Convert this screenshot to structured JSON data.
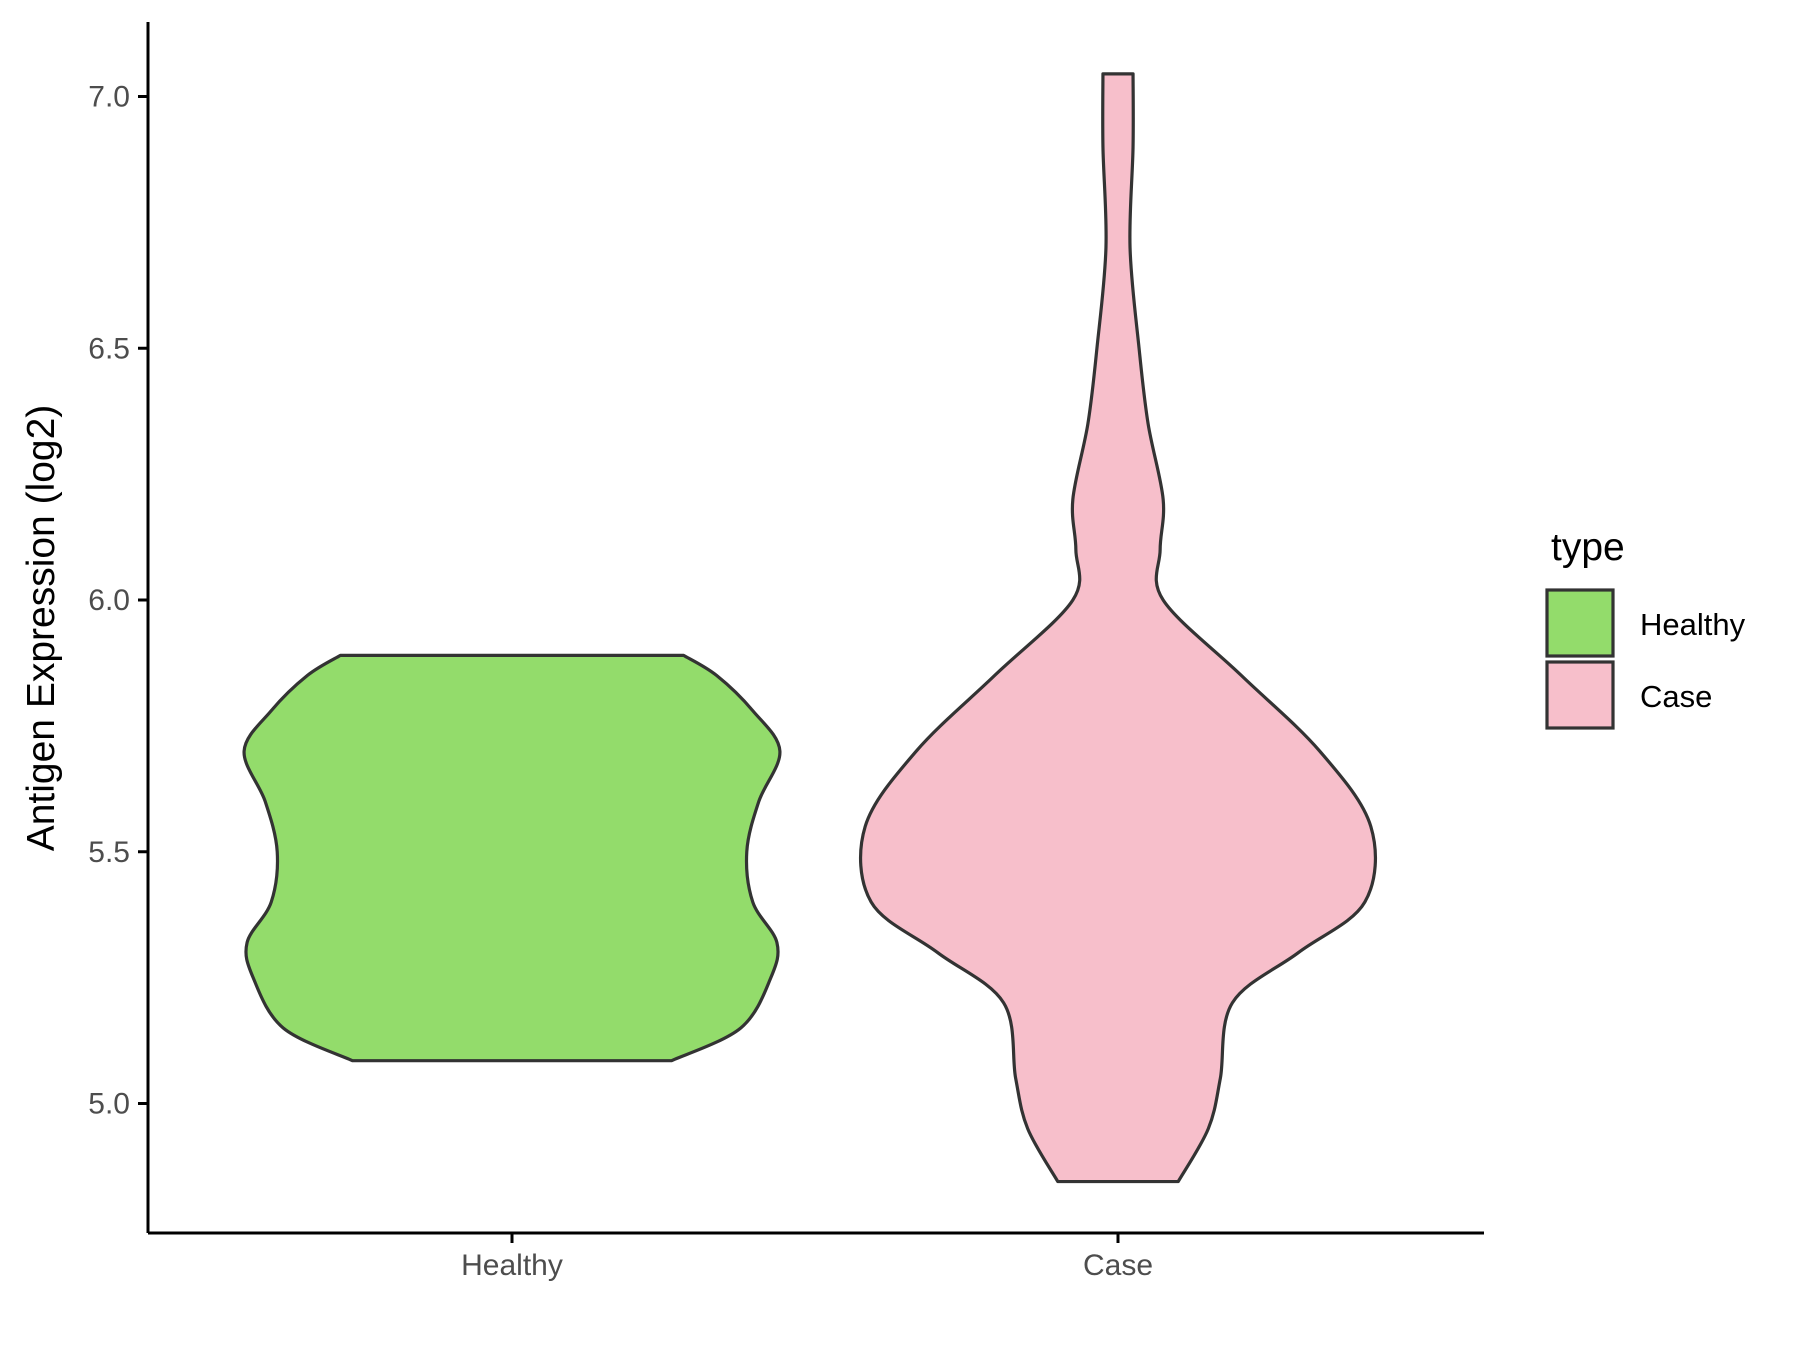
{
  "chart_data": {
    "type": "violin",
    "xlabel": "",
    "ylabel": "Antigen Expression (log2)",
    "ylim": [
      4.74,
      7.15
    ],
    "yticks": [
      "5.0",
      "5.5",
      "6.0",
      "6.5",
      "7.0"
    ],
    "ytick_values": [
      5.0,
      5.5,
      6.0,
      6.5,
      7.0
    ],
    "categories": [
      "Healthy",
      "Case"
    ],
    "grid": false,
    "legend": {
      "title": "type",
      "position": "right"
    },
    "series": [
      {
        "name": "Healthy",
        "color": "#93dc6b",
        "min": 5.085,
        "max": 5.89,
        "density_y": [
          5.085,
          5.15,
          5.25,
          5.32,
          5.4,
          5.5,
          5.6,
          5.7,
          5.78,
          5.85,
          5.89
        ],
        "density_halfwidth": [
          0.53,
          0.76,
          0.86,
          0.88,
          0.8,
          0.78,
          0.82,
          0.89,
          0.8,
          0.68,
          0.57
        ]
      },
      {
        "name": "Case",
        "color": "#f7bfcb",
        "min": 4.845,
        "max": 7.045,
        "density_y": [
          4.845,
          4.95,
          5.05,
          5.2,
          5.3,
          5.4,
          5.55,
          5.7,
          5.85,
          6.0,
          6.1,
          6.2,
          6.35,
          6.5,
          6.7,
          6.9,
          7.045
        ],
        "density_halfwidth": [
          0.2,
          0.3,
          0.34,
          0.38,
          0.6,
          0.82,
          0.84,
          0.67,
          0.41,
          0.15,
          0.14,
          0.15,
          0.1,
          0.07,
          0.04,
          0.05,
          0.05
        ]
      }
    ]
  },
  "palette": {
    "axis": "#000000",
    "outline": "#333333",
    "tick_text": "#4d4d4d"
  }
}
